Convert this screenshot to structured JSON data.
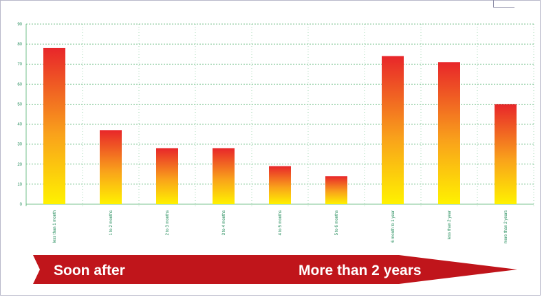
{
  "chart_data": {
    "type": "bar",
    "categories": [
      "less than 1 month",
      "1 to 2 months",
      "2 to 3 months",
      "3 to 4 months",
      "4 to 5 months",
      "5 to 6 months",
      "6 month to 1 year",
      "less than 2 year",
      "more than 2 years"
    ],
    "values": [
      78,
      37,
      28,
      28,
      19,
      14,
      74,
      71,
      50
    ],
    "ylim": [
      0,
      90
    ],
    "yticks": [
      0,
      10,
      20,
      30,
      40,
      50,
      60,
      70,
      80,
      90
    ],
    "grid": true,
    "colors": {
      "bar_top": "#e8262a",
      "bar_mid": "#f5871f",
      "bar_bottom": "#fff200",
      "grid": "#4caf6a",
      "tick_text": "#1f8a58"
    }
  },
  "arrow": {
    "left_label": "Soon after",
    "right_label": "More than 2 years",
    "color": "#c0151b"
  }
}
